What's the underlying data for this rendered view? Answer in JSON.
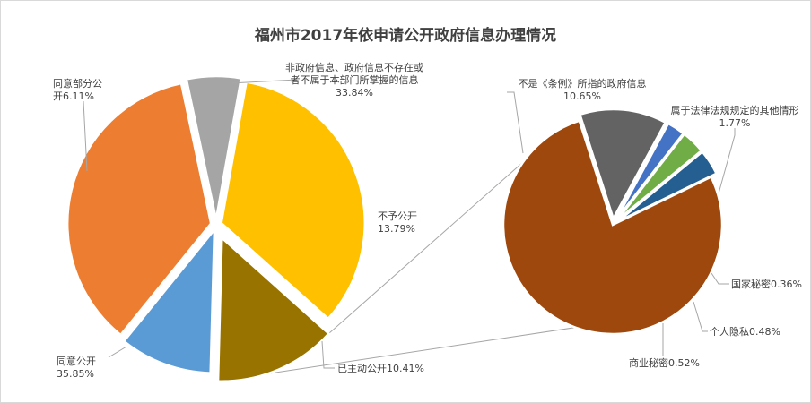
{
  "chart_data": {
    "type": "pie",
    "title": "福州市2017年依申请公开政府信息办理情况",
    "main_slices": [
      {
        "label": "同意公开",
        "value": 35.85,
        "display": "35.85%",
        "color": "#ED7D31"
      },
      {
        "label": "同意部分公开",
        "value": 6.11,
        "display": "6.11%",
        "color": "#A5A5A5"
      },
      {
        "label": "非政府信息、政府信息不存在或者不属于本部门所掌握的信息",
        "value": 33.84,
        "display": "33.84%",
        "color": "#FFC000"
      },
      {
        "label": "不予公开",
        "value": 13.79,
        "display": "13.79%",
        "color": "#997300"
      },
      {
        "label": "已主动公开",
        "value": 10.41,
        "display": "10.41%",
        "color": "#5B9BD5"
      }
    ],
    "breakdown_of": "不予公开",
    "sub_slices": [
      {
        "label": "不是《条例》所指的政府信息",
        "value": 10.65,
        "display": "10.65%",
        "color": "#9E480E"
      },
      {
        "label": "属于法律法规规定的其他情形",
        "value": 1.77,
        "display": "1.77%",
        "color": "#636363"
      },
      {
        "label": "国家秘密",
        "value": 0.36,
        "display": "0.36%",
        "color": "#4472C4"
      },
      {
        "label": "个人隐私",
        "value": 0.48,
        "display": "0.48%",
        "color": "#70AD47"
      },
      {
        "label": "商业秘密",
        "value": 0.52,
        "display": "0.52%",
        "color": "#255E91"
      }
    ]
  },
  "labels": {
    "main": [
      {
        "lines": [
          "同意公开",
          "35.85%"
        ]
      },
      {
        "lines": [
          "同意部分公",
          "开6.11%"
        ]
      },
      {
        "lines": [
          "非政府信息、政府信息不存在或",
          "者不属于本部门所掌握的信息",
          "33.84%"
        ]
      },
      {
        "lines": [
          "不予公开",
          "13.79%"
        ]
      },
      {
        "lines": [
          "已主动公开10.41%"
        ]
      }
    ],
    "sub": [
      {
        "lines": [
          "不是《条例》所指的政府信息",
          "10.65%"
        ]
      },
      {
        "lines": [
          "属于法律法规规定的其他情形",
          "1.77%"
        ]
      },
      {
        "lines": [
          "国家秘密0.36%"
        ]
      },
      {
        "lines": [
          "个人隐私0.48%"
        ]
      },
      {
        "lines": [
          "商业秘密0.52%"
        ]
      }
    ]
  }
}
